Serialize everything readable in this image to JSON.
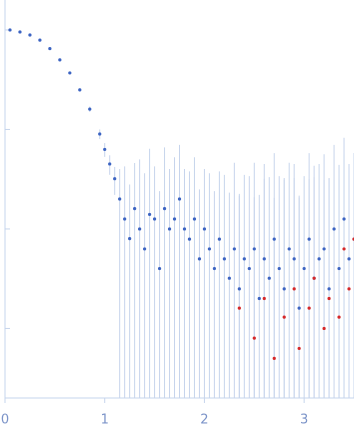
{
  "chart_data": {
    "type": "scatter",
    "ylog": true,
    "xlim": [
      0,
      3.5
    ],
    "xticks": [
      0,
      1,
      2,
      3
    ],
    "ylim": [
      0.0002,
      2
    ],
    "yticks": [
      0.001,
      0.01,
      0.1,
      1
    ],
    "error_color": "#c6d4ec",
    "series": [
      {
        "color": "#3b63c2",
        "x": [
          0.05,
          0.15,
          0.25,
          0.35,
          0.45,
          0.55,
          0.65,
          0.75,
          0.85,
          0.95,
          1.0,
          1.05,
          1.1,
          1.15,
          1.2,
          1.25,
          1.3,
          1.35,
          1.4,
          1.45,
          1.5,
          1.55,
          1.6,
          1.65,
          1.7,
          1.75,
          1.8,
          1.85,
          1.9,
          1.95,
          2.0,
          2.05,
          2.1,
          2.15,
          2.2,
          2.25,
          2.3,
          2.35,
          2.4,
          2.45,
          2.5,
          2.55,
          2.6,
          2.65,
          2.7,
          2.75,
          2.8,
          2.85,
          2.9,
          2.95,
          3.0,
          3.05,
          3.1,
          3.15,
          3.2,
          3.25,
          3.3,
          3.35,
          3.4,
          3.45,
          3.5
        ],
        "values": [
          1.0,
          0.955,
          0.89,
          0.79,
          0.65,
          0.5,
          0.37,
          0.25,
          0.16,
          0.09,
          0.063,
          0.045,
          0.032,
          0.02,
          0.0126,
          0.008,
          0.016,
          0.01,
          0.0063,
          0.014,
          0.0126,
          0.004,
          0.016,
          0.01,
          0.0126,
          0.02,
          0.01,
          0.0079,
          0.0126,
          0.005,
          0.01,
          0.0063,
          0.004,
          0.0079,
          0.005,
          0.0032,
          0.0063,
          0.0025,
          0.005,
          0.004,
          0.0063,
          0.002,
          0.005,
          0.0032,
          0.0079,
          0.004,
          0.0025,
          0.0063,
          0.005,
          0.0016,
          0.004,
          0.0079,
          0.0032,
          0.005,
          0.0063,
          0.0025,
          0.01,
          0.004,
          0.0126,
          0.005,
          0.0079
        ],
        "errors": [
          0.01,
          0.01,
          0.01,
          0.01,
          0.01,
          0.01,
          0.01,
          0.01,
          0.01,
          0.01,
          0.01,
          0.01,
          0.01,
          0.02,
          0.03,
          0.02,
          0.03,
          0.04,
          0.03,
          0.05,
          0.03,
          0.02,
          0.05,
          0.03,
          0.04,
          0.05,
          0.03,
          0.03,
          0.04,
          0.02,
          0.03,
          0.03,
          0.02,
          0.03,
          0.03,
          0.02,
          0.04,
          0.02,
          0.03,
          0.03,
          0.04,
          0.02,
          0.04,
          0.03,
          0.05,
          0.03,
          0.03,
          0.04,
          0.04,
          0.02,
          0.03,
          0.05,
          0.03,
          0.04,
          0.05,
          0.03,
          0.06,
          0.04,
          0.07,
          0.04,
          0.05
        ]
      },
      {
        "color": "#d62728",
        "x": [
          2.35,
          2.5,
          2.6,
          2.7,
          2.8,
          2.9,
          2.95,
          3.05,
          3.1,
          3.2,
          3.25,
          3.35,
          3.4,
          3.45,
          3.5
        ],
        "values": [
          0.0016,
          0.0008,
          0.002,
          0.0005,
          0.0013,
          0.0025,
          0.00063,
          0.0016,
          0.0032,
          0.001,
          0.002,
          0.0013,
          0.0063,
          0.0025,
          0.0079
        ],
        "errors": [
          0.02,
          0.02,
          0.03,
          0.02,
          0.03,
          0.03,
          0.02,
          0.03,
          0.04,
          0.03,
          0.03,
          0.03,
          0.05,
          0.04,
          0.05
        ]
      }
    ]
  }
}
